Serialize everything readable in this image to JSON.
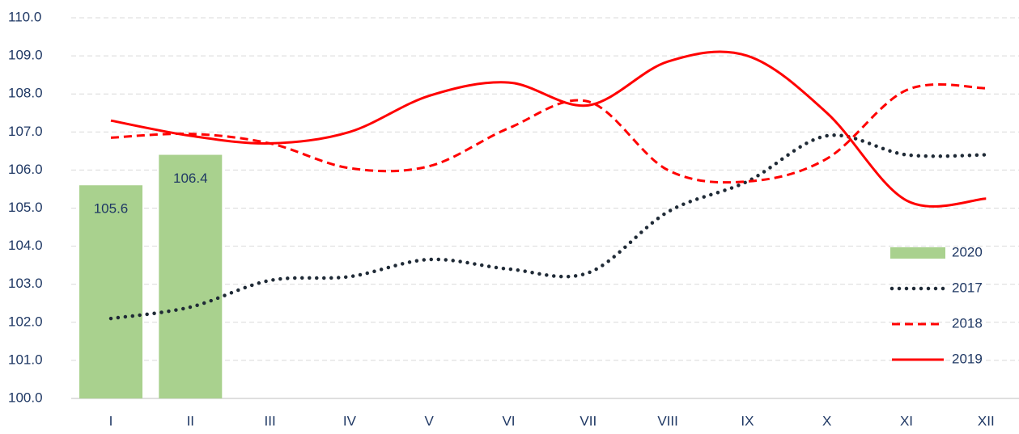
{
  "chart_data": {
    "type": "combo",
    "categories": [
      "I",
      "II",
      "III",
      "IV",
      "V",
      "VI",
      "VII",
      "VIII",
      "IX",
      "X",
      "XI",
      "XII"
    ],
    "ylim": [
      100,
      110
    ],
    "yticks": [
      {
        "value": 100,
        "label": "100.0"
      },
      {
        "value": 101,
        "label": "101.0"
      },
      {
        "value": 102,
        "label": "102.0"
      },
      {
        "value": 103,
        "label": "103.0"
      },
      {
        "value": 104,
        "label": "104.0"
      },
      {
        "value": 105,
        "label": "105.0"
      },
      {
        "value": 106,
        "label": "106.0"
      },
      {
        "value": 107,
        "label": "107.0"
      },
      {
        "value": 108,
        "label": "108.0"
      },
      {
        "value": 109,
        "label": "109.0"
      },
      {
        "value": 110,
        "label": "110.0"
      }
    ],
    "grid": true,
    "legend": "right",
    "series": [
      {
        "name": "2020",
        "type": "bar",
        "color": "#a9d18e",
        "values": [
          105.6,
          106.4,
          null,
          null,
          null,
          null,
          null,
          null,
          null,
          null,
          null,
          null
        ]
      },
      {
        "name": "2017",
        "type": "line",
        "style": "dotted",
        "color": "#1f2a36",
        "values": [
          102.1,
          102.4,
          103.1,
          103.2,
          103.65,
          103.4,
          103.3,
          104.9,
          105.7,
          106.9,
          106.4,
          106.4
        ]
      },
      {
        "name": "2018",
        "type": "line",
        "style": "dashed",
        "color": "#ff0000",
        "values": [
          106.85,
          106.95,
          106.7,
          106.05,
          106.1,
          107.1,
          107.8,
          106.0,
          105.7,
          106.3,
          108.1,
          108.15
        ]
      },
      {
        "name": "2019",
        "type": "line",
        "style": "solid",
        "color": "#ff0000",
        "values": [
          107.3,
          106.9,
          106.7,
          107.0,
          107.95,
          108.3,
          107.7,
          108.85,
          109.0,
          107.5,
          105.2,
          105.25
        ]
      }
    ]
  }
}
